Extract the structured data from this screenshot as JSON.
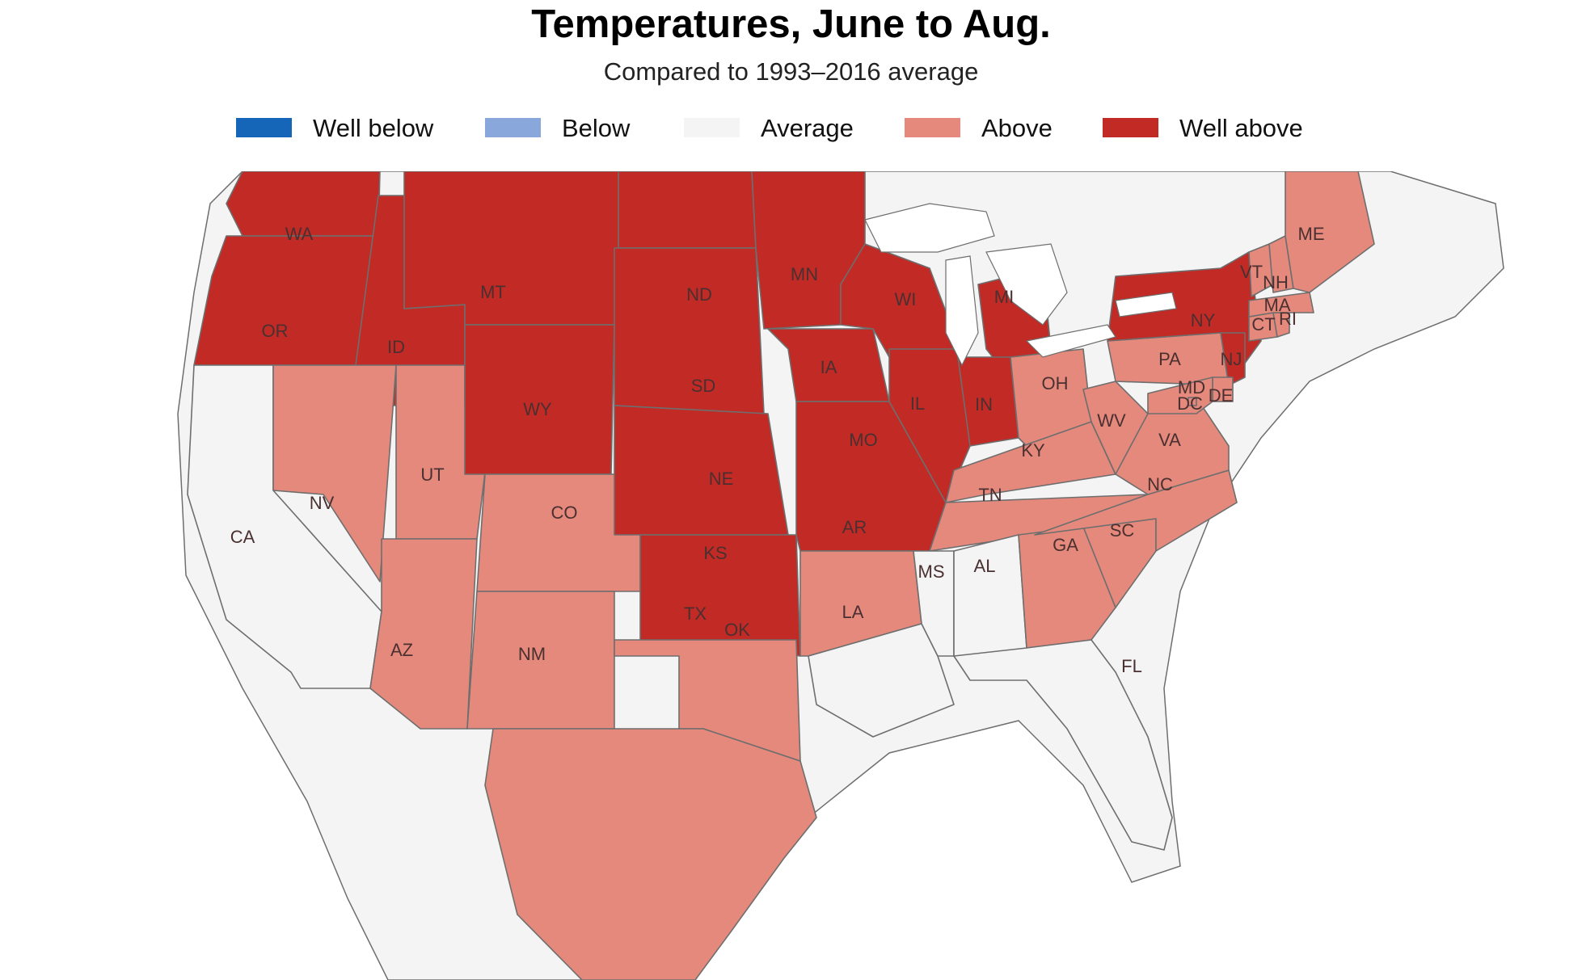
{
  "title": "Temperatures, June to Aug.",
  "subtitle": "Compared to 1993–2016 average",
  "legend": [
    {
      "id": "well-below",
      "label": "Well below",
      "color": "#1565b8"
    },
    {
      "id": "below",
      "label": "Below",
      "color": "#8aa7dc"
    },
    {
      "id": "average",
      "label": "Average",
      "color": "#f4f4f4"
    },
    {
      "id": "above",
      "label": "Above",
      "color": "#e5897c"
    },
    {
      "id": "well-above",
      "label": "Well above",
      "color": "#c12a25"
    }
  ],
  "map": {
    "region": "Contiguous United States",
    "colors": {
      "boundary": "#6e6e6e",
      "water": "#ffffff"
    },
    "states": [
      {
        "abbr": "WA",
        "category": "well-above"
      },
      {
        "abbr": "OR",
        "category": "well-above"
      },
      {
        "abbr": "CA",
        "category": "average"
      },
      {
        "abbr": "ID",
        "category": "well-above"
      },
      {
        "abbr": "NV",
        "category": "above"
      },
      {
        "abbr": "UT",
        "category": "above"
      },
      {
        "abbr": "AZ",
        "category": "above"
      },
      {
        "abbr": "MT",
        "category": "well-above"
      },
      {
        "abbr": "WY",
        "category": "well-above"
      },
      {
        "abbr": "CO",
        "category": "above"
      },
      {
        "abbr": "NM",
        "category": "above"
      },
      {
        "abbr": "ND",
        "category": "well-above"
      },
      {
        "abbr": "SD",
        "category": "well-above"
      },
      {
        "abbr": "NE",
        "category": "well-above"
      },
      {
        "abbr": "KS",
        "category": "well-above"
      },
      {
        "abbr": "OK",
        "category": "above"
      },
      {
        "abbr": "TX",
        "category": "above"
      },
      {
        "abbr": "MN",
        "category": "well-above"
      },
      {
        "abbr": "IA",
        "category": "well-above"
      },
      {
        "abbr": "MO",
        "category": "well-above"
      },
      {
        "abbr": "AR",
        "category": "above"
      },
      {
        "abbr": "LA",
        "category": "average"
      },
      {
        "abbr": "WI",
        "category": "well-above"
      },
      {
        "abbr": "IL",
        "category": "well-above"
      },
      {
        "abbr": "MI",
        "category": "well-above"
      },
      {
        "abbr": "IN",
        "category": "well-above"
      },
      {
        "abbr": "OH",
        "category": "above"
      },
      {
        "abbr": "KY",
        "category": "above"
      },
      {
        "abbr": "TN",
        "category": "above"
      },
      {
        "abbr": "MS",
        "category": "average"
      },
      {
        "abbr": "AL",
        "category": "average"
      },
      {
        "abbr": "GA",
        "category": "above"
      },
      {
        "abbr": "FL",
        "category": "average"
      },
      {
        "abbr": "SC",
        "category": "above"
      },
      {
        "abbr": "NC",
        "category": "above"
      },
      {
        "abbr": "VA",
        "category": "above"
      },
      {
        "abbr": "WV",
        "category": "above"
      },
      {
        "abbr": "PA",
        "category": "above"
      },
      {
        "abbr": "NY",
        "category": "well-above"
      },
      {
        "abbr": "NJ",
        "category": "well-above"
      },
      {
        "abbr": "DE",
        "category": "above"
      },
      {
        "abbr": "MD",
        "category": "above"
      },
      {
        "abbr": "DC",
        "category": "above"
      },
      {
        "abbr": "CT",
        "category": "above"
      },
      {
        "abbr": "RI",
        "category": "above"
      },
      {
        "abbr": "MA",
        "category": "above"
      },
      {
        "abbr": "VT",
        "category": "above"
      },
      {
        "abbr": "NH",
        "category": "above"
      },
      {
        "abbr": "ME",
        "category": "above"
      }
    ]
  }
}
